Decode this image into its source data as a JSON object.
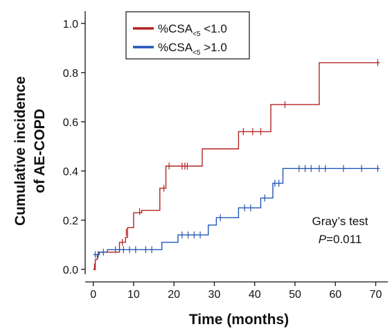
{
  "chart_data": {
    "type": "line",
    "step": true,
    "xlabel": "Time (months)",
    "ylabel_lines": [
      "Cumulative incidence",
      "of AE-COPD"
    ],
    "xlim": [
      -2,
      73
    ],
    "ylim": [
      -0.02,
      1.05
    ],
    "xticks": [
      0,
      10,
      20,
      30,
      40,
      50,
      60,
      70
    ],
    "xtick_labels": [
      "0",
      "10",
      "20",
      "30",
      "40",
      "50",
      "60",
      "70"
    ],
    "yticks": [
      0.0,
      0.2,
      0.4,
      0.6,
      0.8,
      1.0
    ],
    "ytick_labels": [
      "0.0",
      "0.2",
      "0.4",
      "0.6",
      "0.8",
      "1.0"
    ],
    "grid": false,
    "legend": {
      "position": "top-left",
      "entries": [
        {
          "pre": "%CSA",
          "sub": "<5",
          "post": " <1.0",
          "color": "#b22222"
        },
        {
          "pre": "%CSA",
          "sub": "<5",
          "post": " >1.0",
          "color": "#2255b5"
        }
      ]
    },
    "annotation": {
      "line1": "Gray’s test",
      "italic": "P",
      "rest": "=0.011"
    },
    "series": [
      {
        "color": "#b22222",
        "steps": [
          [
            0,
            0
          ],
          [
            0.5,
            0.04
          ],
          [
            1,
            0.06
          ],
          [
            1.5,
            0.07
          ],
          [
            6.5,
            0.11
          ],
          [
            8,
            0.13
          ],
          [
            8.5,
            0.17
          ],
          [
            10,
            0.23
          ],
          [
            12,
            0.24
          ],
          [
            16.5,
            0.33
          ],
          [
            18,
            0.42
          ],
          [
            27,
            0.49
          ],
          [
            36,
            0.56
          ],
          [
            44,
            0.67
          ],
          [
            56,
            0.84
          ],
          [
            71,
            0.84
          ]
        ],
        "censor": [
          [
            0.3,
            0.01
          ],
          [
            1.2,
            0.06
          ],
          [
            7.2,
            0.11
          ],
          [
            8.2,
            0.15
          ],
          [
            11.5,
            0.235
          ],
          [
            17.5,
            0.33
          ],
          [
            18.8,
            0.42
          ],
          [
            22,
            0.42
          ],
          [
            22.7,
            0.42
          ],
          [
            23.3,
            0.42
          ],
          [
            37.2,
            0.56
          ],
          [
            39.5,
            0.56
          ],
          [
            41.5,
            0.56
          ],
          [
            47.5,
            0.67
          ],
          [
            70.5,
            0.84
          ]
        ]
      },
      {
        "color": "#2255b5",
        "steps": [
          [
            0,
            0.06
          ],
          [
            1.5,
            0.07
          ],
          [
            3.5,
            0.08
          ],
          [
            17,
            0.11
          ],
          [
            21,
            0.14
          ],
          [
            28.5,
            0.18
          ],
          [
            30.5,
            0.21
          ],
          [
            36,
            0.25
          ],
          [
            41.5,
            0.29
          ],
          [
            44.5,
            0.35
          ],
          [
            47,
            0.41
          ],
          [
            71,
            0.41
          ]
        ],
        "censor": [
          [
            0.5,
            0.06
          ],
          [
            1.2,
            0.06
          ],
          [
            2.5,
            0.07
          ],
          [
            5.5,
            0.08
          ],
          [
            7.5,
            0.08
          ],
          [
            9,
            0.08
          ],
          [
            10.5,
            0.08
          ],
          [
            13,
            0.08
          ],
          [
            14.5,
            0.08
          ],
          [
            22,
            0.14
          ],
          [
            23.5,
            0.14
          ],
          [
            25,
            0.14
          ],
          [
            26.5,
            0.14
          ],
          [
            31.5,
            0.21
          ],
          [
            37.5,
            0.25
          ],
          [
            39,
            0.25
          ],
          [
            42.5,
            0.29
          ],
          [
            45,
            0.35
          ],
          [
            46,
            0.35
          ],
          [
            51,
            0.41
          ],
          [
            52.5,
            0.41
          ],
          [
            54,
            0.41
          ],
          [
            56,
            0.41
          ],
          [
            57.5,
            0.41
          ],
          [
            62,
            0.41
          ],
          [
            66.5,
            0.41
          ],
          [
            70.5,
            0.41
          ]
        ]
      }
    ]
  }
}
